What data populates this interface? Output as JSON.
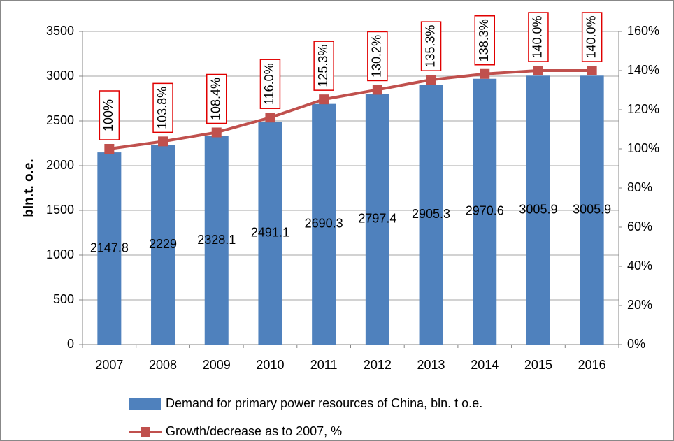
{
  "chart_data": {
    "type": "bar_line",
    "y_label": "bln.t. o.e.",
    "categories": [
      "2007",
      "2008",
      "2009",
      "2010",
      "2011",
      "2012",
      "2013",
      "2014",
      "2015",
      "2016"
    ],
    "series": [
      {
        "name": "Demand for primary power resources of China, bln. t o.e.",
        "type": "bar",
        "color": "#4f81bd",
        "values": [
          2147.8,
          2229,
          2328.1,
          2491.1,
          2690.3,
          2797.4,
          2905.3,
          2970.6,
          3005.9,
          3005.9
        ]
      },
      {
        "name": "Growth/decrease as to 2007, %",
        "type": "line",
        "axis": "y2",
        "color": "#c0504d",
        "values": [
          100,
          103.8,
          108.4,
          116.0,
          125.3,
          130.2,
          135.3,
          138.3,
          140.0,
          140.0
        ],
        "value_labels": [
          "100%",
          "103.8%",
          "108.4%",
          "116.0%",
          "125.3%",
          "130.2%",
          "135.3%",
          "138.3%",
          "140.0%",
          "140.0%"
        ]
      }
    ],
    "ylim": [
      0,
      3500
    ],
    "yticks": [
      0,
      500,
      1000,
      1500,
      2000,
      2500,
      3000,
      3500
    ],
    "y2lim": [
      0,
      160
    ],
    "y2ticks": [
      {
        "value": 0,
        "label": "0%"
      },
      {
        "value": 20,
        "label": "20%"
      },
      {
        "value": 40,
        "label": "40%"
      },
      {
        "value": 60,
        "label": "60%"
      },
      {
        "value": 80,
        "label": "80%"
      },
      {
        "value": 100,
        "label": "100%"
      },
      {
        "value": 120,
        "label": "120%"
      },
      {
        "value": 140,
        "label": "140%"
      },
      {
        "value": 160,
        "label": "160%"
      }
    ],
    "grid": true,
    "legend": "bottom"
  }
}
